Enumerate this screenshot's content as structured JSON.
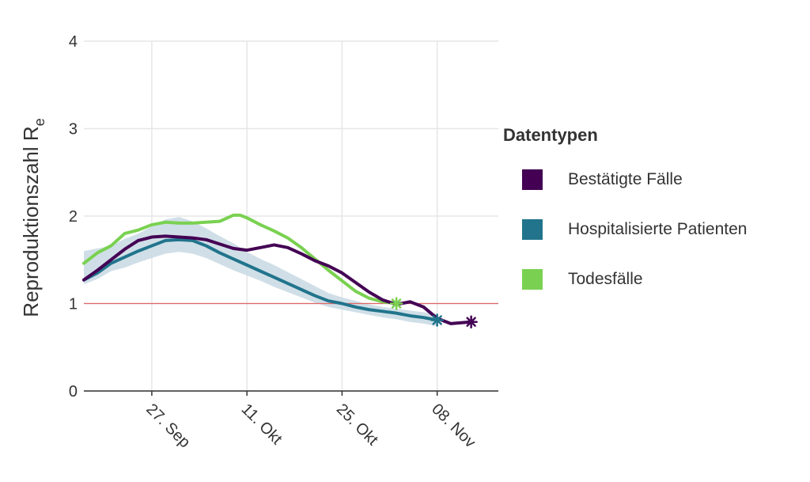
{
  "chart_data": {
    "type": "line",
    "title": "",
    "xlabel": "",
    "ylabel": "Reproduktionszahl R",
    "ylabel_subscript": "e",
    "ylim": [
      0,
      4
    ],
    "yticks": [
      0,
      1,
      2,
      3,
      4
    ],
    "xlim": [
      "2020-09-17",
      "2020-11-17"
    ],
    "xticks": [
      {
        "date": "2020-09-27",
        "label": "27. Sep"
      },
      {
        "date": "2020-10-11",
        "label": "11. Okt"
      },
      {
        "date": "2020-10-25",
        "label": "25. Okt"
      },
      {
        "date": "2020-11-08",
        "label": "08. Nov"
      }
    ],
    "reference_line": {
      "y": 1,
      "color": "#e06666"
    },
    "grid": true,
    "legend": {
      "title": "Datentypen",
      "position": "right"
    },
    "series": [
      {
        "name": "Bestätigte Fälle",
        "color": "#440154",
        "x": [
          "2020-09-17",
          "2020-09-19",
          "2020-09-21",
          "2020-09-23",
          "2020-09-25",
          "2020-09-27",
          "2020-09-29",
          "2020-10-01",
          "2020-10-03",
          "2020-10-05",
          "2020-10-07",
          "2020-10-09",
          "2020-10-11",
          "2020-10-13",
          "2020-10-15",
          "2020-10-17",
          "2020-10-19",
          "2020-10-21",
          "2020-10-23",
          "2020-10-25",
          "2020-10-27",
          "2020-10-29",
          "2020-10-31",
          "2020-11-02",
          "2020-11-04",
          "2020-11-06",
          "2020-11-08",
          "2020-11-10",
          "2020-11-13"
        ],
        "y": [
          1.27,
          1.38,
          1.5,
          1.62,
          1.72,
          1.76,
          1.77,
          1.76,
          1.75,
          1.73,
          1.68,
          1.63,
          1.61,
          1.64,
          1.67,
          1.64,
          1.57,
          1.49,
          1.43,
          1.35,
          1.24,
          1.13,
          1.04,
          0.99,
          1.02,
          0.96,
          0.83,
          0.77,
          0.79
        ],
        "end_marker": {
          "date": "2020-11-13",
          "value": 0.79
        }
      },
      {
        "name": "Hospitalisierte Patienten",
        "color": "#21748c",
        "band_color": "#c8d9e3",
        "x": [
          "2020-09-17",
          "2020-09-19",
          "2020-09-21",
          "2020-09-23",
          "2020-09-25",
          "2020-09-27",
          "2020-09-29",
          "2020-10-01",
          "2020-10-03",
          "2020-10-05",
          "2020-10-07",
          "2020-10-09",
          "2020-10-11",
          "2020-10-13",
          "2020-10-15",
          "2020-10-17",
          "2020-10-19",
          "2020-10-21",
          "2020-10-23",
          "2020-10-25",
          "2020-10-27",
          "2020-10-29",
          "2020-10-31",
          "2020-11-02",
          "2020-11-04",
          "2020-11-06",
          "2020-11-08"
        ],
        "y": [
          1.27,
          1.35,
          1.46,
          1.53,
          1.6,
          1.66,
          1.72,
          1.73,
          1.72,
          1.66,
          1.58,
          1.51,
          1.44,
          1.37,
          1.3,
          1.23,
          1.16,
          1.09,
          1.03,
          1.0,
          0.96,
          0.93,
          0.91,
          0.89,
          0.86,
          0.84,
          0.81
        ],
        "lower": [
          1.22,
          1.28,
          1.37,
          1.41,
          1.47,
          1.52,
          1.57,
          1.59,
          1.57,
          1.52,
          1.45,
          1.38,
          1.32,
          1.26,
          1.19,
          1.13,
          1.07,
          1.01,
          0.96,
          0.93,
          0.9,
          0.87,
          0.84,
          0.82,
          0.79,
          0.77,
          0.74
        ],
        "upper": [
          1.6,
          1.63,
          1.66,
          1.74,
          1.8,
          1.88,
          1.96,
          1.99,
          1.94,
          1.86,
          1.77,
          1.69,
          1.59,
          1.51,
          1.44,
          1.36,
          1.28,
          1.2,
          1.12,
          1.07,
          1.03,
          0.99,
          0.96,
          0.94,
          0.92,
          0.9,
          0.88
        ],
        "end_marker": {
          "date": "2020-11-08",
          "value": 0.81
        }
      },
      {
        "name": "Todesfälle",
        "color": "#7ad151",
        "x": [
          "2020-09-17",
          "2020-09-19",
          "2020-09-21",
          "2020-09-23",
          "2020-09-25",
          "2020-09-27",
          "2020-09-29",
          "2020-10-01",
          "2020-10-03",
          "2020-10-05",
          "2020-10-07",
          "2020-10-09",
          "2020-10-10",
          "2020-10-11",
          "2020-10-13",
          "2020-10-15",
          "2020-10-17",
          "2020-10-19",
          "2020-10-21",
          "2020-10-23",
          "2020-10-25",
          "2020-10-27",
          "2020-10-29",
          "2020-10-31",
          "2020-11-02"
        ],
        "y": [
          1.46,
          1.58,
          1.66,
          1.8,
          1.84,
          1.9,
          1.93,
          1.92,
          1.92,
          1.93,
          1.94,
          2.01,
          2.01,
          1.98,
          1.9,
          1.83,
          1.75,
          1.64,
          1.51,
          1.38,
          1.26,
          1.14,
          1.06,
          1.02,
          1.0
        ],
        "end_marker": {
          "date": "2020-11-02",
          "value": 1.0
        }
      }
    ]
  }
}
